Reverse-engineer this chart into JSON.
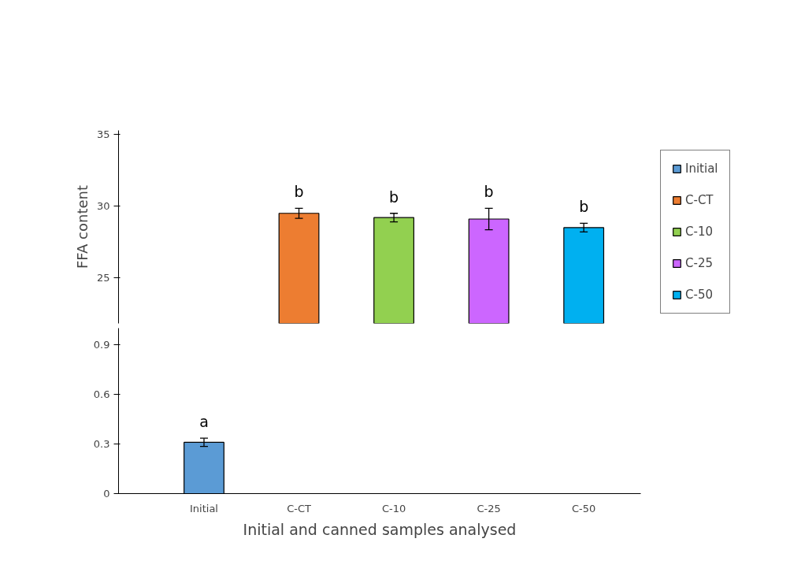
{
  "chart_data": [
    {
      "type": "bar",
      "ylabel": "FFA content",
      "categories": [
        "Initial",
        "C-CT",
        "C-10",
        "C-25",
        "C-50"
      ],
      "series": [
        {
          "name": "Initial",
          "color": "#5b9bd5",
          "values": [
            null,
            null,
            null,
            null,
            null
          ]
        },
        {
          "name": "C-CT",
          "color": "#ed7d31",
          "values": [
            null,
            29.5,
            null,
            null,
            null
          ],
          "errors": [
            null,
            0.35,
            null,
            null,
            null
          ]
        },
        {
          "name": "C-10",
          "color": "#92d050",
          "values": [
            null,
            null,
            29.2,
            null,
            null
          ],
          "errors": [
            null,
            null,
            0.3,
            null,
            null
          ]
        },
        {
          "name": "C-25",
          "color": "#cc66ff",
          "values": [
            null,
            null,
            null,
            29.1,
            null
          ],
          "errors": [
            null,
            null,
            null,
            0.75,
            null
          ]
        },
        {
          "name": "C-50",
          "color": "#00b0f0",
          "values": [
            null,
            null,
            null,
            null,
            28.5
          ],
          "errors": [
            null,
            null,
            null,
            null,
            0.3
          ]
        }
      ],
      "ylim": [
        21.8,
        35.3
      ],
      "yticks": [
        25,
        30,
        35
      ],
      "tick_labels": "y",
      "grid": false,
      "legend": "right",
      "annotations": [
        {
          "text": "b",
          "x": "C-CT",
          "y": 29.5
        },
        {
          "text": "b",
          "x": "C-10",
          "y": 29.2
        },
        {
          "text": "b",
          "x": "C-25",
          "y": 29.1
        },
        {
          "text": "b",
          "x": "C-50",
          "y": 28.5
        }
      ]
    },
    {
      "type": "bar",
      "xlabel": "Initial and canned samples analysed",
      "categories": [
        "Initial",
        "C-CT",
        "C-10",
        "C-25",
        "C-50"
      ],
      "series": [
        {
          "color": "#5b9bd5",
          "values": [
            0.31,
            null,
            null,
            null,
            null
          ],
          "errors": [
            0.025,
            null,
            null,
            null,
            null
          ]
        }
      ],
      "ylim": [
        0,
        1.0
      ],
      "yticks": [
        0,
        0.3,
        0.6,
        0.9
      ],
      "grid": false,
      "legend": false,
      "annotations": [
        {
          "text": "a",
          "x": "Initial",
          "y": 0.31
        }
      ]
    }
  ]
}
